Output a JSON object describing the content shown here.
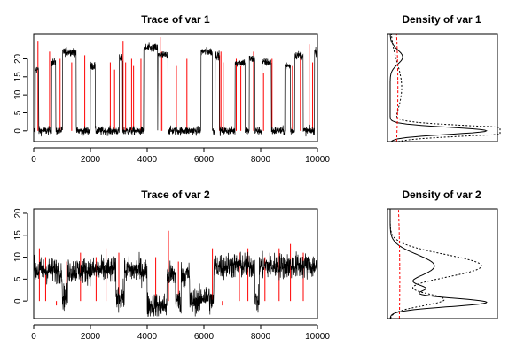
{
  "colors": {
    "chain_1": "#000000",
    "chain_2": "#ff0000",
    "frame": "#000000",
    "background": "#ffffff"
  },
  "chart_data": [
    {
      "id": "trace1",
      "type": "line",
      "title": "Trace of var 1",
      "xlabel": "",
      "ylabel": "",
      "xlim": [
        0,
        10000
      ],
      "ylim": [
        -3,
        27
      ],
      "x_ticks": [
        0,
        2000,
        4000,
        6000,
        8000,
        10000
      ],
      "y_ticks": [
        0,
        5,
        10,
        15,
        20
      ],
      "series": [
        {
          "color": "#000000",
          "noise": 1.2,
          "segments": [
            [
              0,
              0
            ],
            [
              60,
              17
            ],
            [
              180,
              0
            ],
            [
              630,
              19
            ],
            [
              780,
              0
            ],
            [
              1020,
              22
            ],
            [
              1500,
              0
            ],
            [
              2000,
              18
            ],
            [
              2170,
              0
            ],
            [
              3020,
              20
            ],
            [
              3130,
              0
            ],
            [
              3880,
              23
            ],
            [
              4370,
              0
            ],
            [
              4380,
              21
            ],
            [
              4730,
              0
            ],
            [
              5900,
              22
            ],
            [
              6300,
              0
            ],
            [
              6400,
              21
            ],
            [
              6550,
              0
            ],
            [
              7100,
              19
            ],
            [
              7450,
              0
            ],
            [
              7600,
              20
            ],
            [
              7800,
              0
            ],
            [
              8050,
              19
            ],
            [
              8380,
              0
            ],
            [
              8850,
              18
            ],
            [
              9050,
              0
            ],
            [
              9200,
              21
            ],
            [
              9500,
              0
            ],
            [
              9900,
              22
            ],
            [
              10000,
              0
            ]
          ]
        },
        {
          "color": "#ff0000",
          "spikes": [
            [
              150,
              25
            ],
            [
              560,
              22
            ],
            [
              930,
              20
            ],
            [
              1340,
              19
            ],
            [
              1800,
              21
            ],
            [
              2700,
              19
            ],
            [
              2850,
              17
            ],
            [
              3150,
              25
            ],
            [
              3240,
              19
            ],
            [
              3450,
              20
            ],
            [
              3520,
              18
            ],
            [
              3780,
              20
            ],
            [
              4460,
              26
            ],
            [
              4520,
              22
            ],
            [
              5030,
              18
            ],
            [
              5400,
              20
            ],
            [
              6550,
              21
            ],
            [
              6600,
              22
            ],
            [
              6680,
              19
            ],
            [
              7140,
              20
            ],
            [
              7300,
              18
            ],
            [
              7750,
              22
            ],
            [
              8100,
              16
            ],
            [
              8400,
              20
            ],
            [
              9120,
              18
            ],
            [
              9400,
              21
            ],
            [
              9710,
              24
            ],
            [
              9830,
              19
            ]
          ]
        }
      ]
    },
    {
      "id": "density1",
      "type": "line",
      "title": "Density of var 1",
      "orientation": "rotated",
      "ylim": [
        -3,
        27
      ],
      "series": [
        {
          "color": "#000000",
          "dash": "",
          "peaks": [
            {
              "mu": 0,
              "sd": 1.0,
              "w": 1.0
            },
            {
              "mu": 20.5,
              "sd": 2.0,
              "w": 0.13
            }
          ]
        },
        {
          "color": "#000000",
          "dash": "2,2",
          "peaks": [
            {
              "mu": 0,
              "sd": 1.2,
              "w": 1.6
            },
            {
              "mu": 12,
              "sd": 7.0,
              "w": 0.12
            }
          ]
        },
        {
          "color": "#ff0000",
          "dash": "3,2",
          "peaks": [
            {
              "mu": 12,
              "sd": 25,
              "w": 0.08
            }
          ]
        }
      ]
    },
    {
      "id": "trace2",
      "type": "line",
      "title": "Trace of var 2",
      "xlabel": "",
      "ylabel": "",
      "xlim": [
        0,
        10000
      ],
      "ylim": [
        -4,
        21
      ],
      "x_ticks": [
        0,
        2000,
        4000,
        6000,
        8000,
        10000
      ],
      "y_ticks": [
        0,
        5,
        10,
        15,
        20
      ],
      "series": [
        {
          "color": "#000000",
          "noise": 3.0,
          "segments": [
            [
              0,
              7
            ],
            [
              1000,
              1
            ],
            [
              1200,
              7
            ],
            [
              2900,
              1
            ],
            [
              3200,
              7
            ],
            [
              4000,
              -1
            ],
            [
              4700,
              6
            ],
            [
              5000,
              0
            ],
            [
              5200,
              6
            ],
            [
              5500,
              0
            ],
            [
              5900,
              1
            ],
            [
              6200,
              0
            ],
            [
              6350,
              8
            ],
            [
              7800,
              0
            ],
            [
              7950,
              8
            ],
            [
              10000,
              8
            ]
          ]
        },
        {
          "color": "#ff0000",
          "spikes": [
            [
              200,
              12
            ],
            [
              420,
              10
            ],
            [
              800,
              -1
            ],
            [
              1150,
              9
            ],
            [
              1650,
              11
            ],
            [
              2200,
              10
            ],
            [
              2550,
              12
            ],
            [
              3000,
              11
            ],
            [
              3500,
              0
            ],
            [
              4300,
              10
            ],
            [
              4750,
              16
            ],
            [
              5100,
              9
            ],
            [
              6300,
              12
            ],
            [
              6650,
              -1
            ],
            [
              7250,
              11
            ],
            [
              7550,
              12
            ],
            [
              8150,
              10
            ],
            [
              8650,
              12
            ],
            [
              9050,
              13
            ],
            [
              9500,
              11
            ]
          ]
        }
      ]
    },
    {
      "id": "density2",
      "type": "line",
      "title": "Density of var 2",
      "orientation": "rotated",
      "ylim": [
        -4,
        21
      ],
      "series": [
        {
          "color": "#000000",
          "dash": "",
          "peaks": [
            {
              "mu": -0.3,
              "sd": 1.0,
              "w": 1.0
            },
            {
              "mu": 8,
              "sd": 2.6,
              "w": 0.46
            },
            {
              "mu": 2.8,
              "sd": 0.9,
              "w": 0.3
            }
          ]
        },
        {
          "color": "#000000",
          "dash": "2,2",
          "peaks": [
            {
              "mu": 0.3,
              "sd": 1.4,
              "w": 0.55
            },
            {
              "mu": 8,
              "sd": 2.6,
              "w": 0.95
            }
          ]
        },
        {
          "color": "#ff0000",
          "dash": "3,2",
          "peaks": [
            {
              "mu": 5,
              "sd": 30,
              "w": 0.1
            }
          ]
        }
      ]
    }
  ]
}
